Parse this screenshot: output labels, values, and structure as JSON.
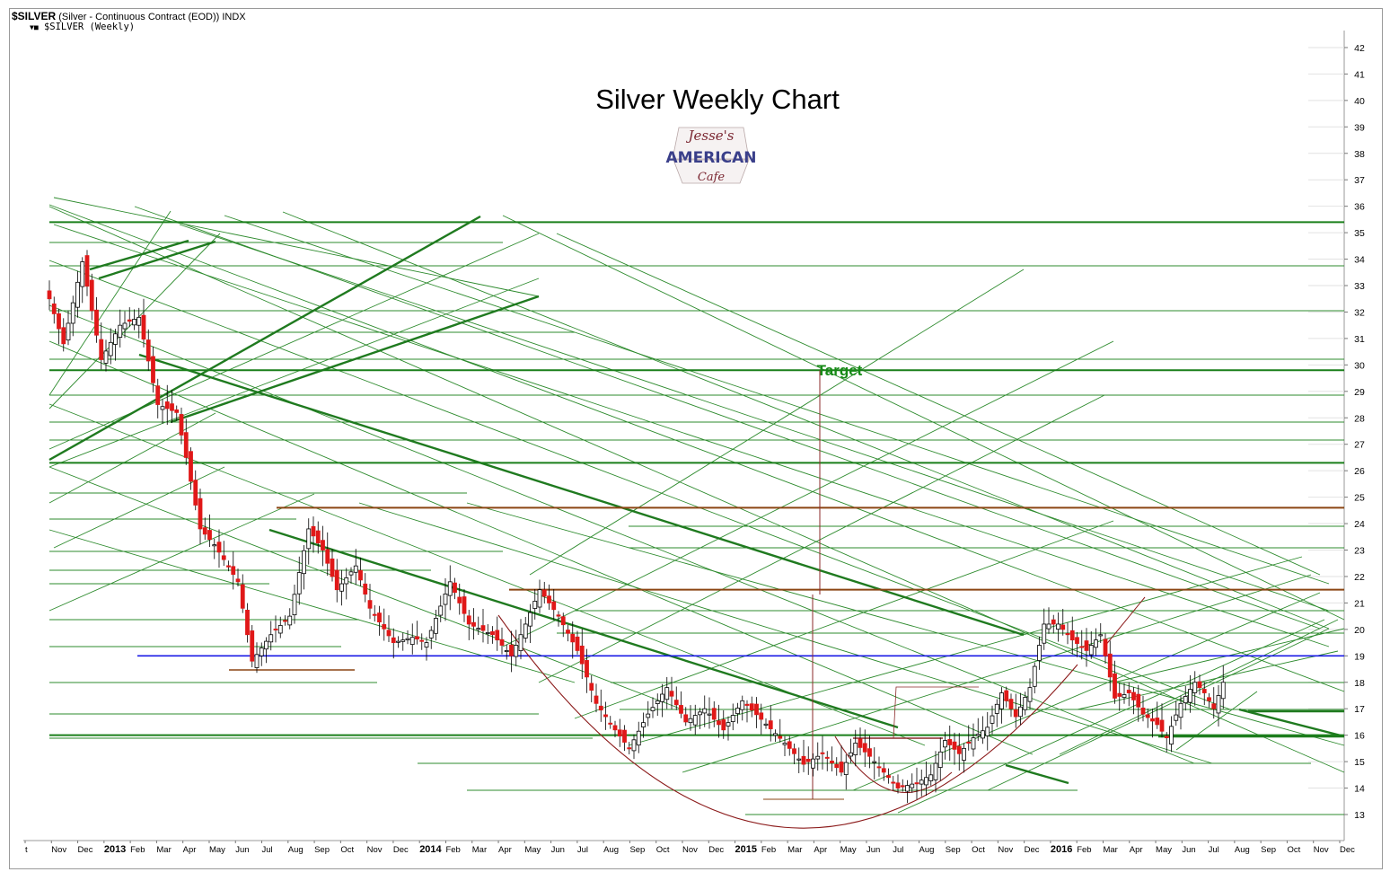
{
  "header": {
    "symbol": "$SILVER",
    "description": "(Silver - Continuous Contract (EOD))",
    "exchange": "INDX",
    "legend_marker": "▼■",
    "legend_label": "$SILVER (Weekly)"
  },
  "chart_data": {
    "type": "candlestick",
    "title": "Silver Weekly Chart",
    "logo_text": {
      "top": "Jesse's",
      "middle": "AMERICAN",
      "bottom": "Cafe"
    },
    "annotation": "Target",
    "annotation_value": 29.8,
    "y_ticks": [
      13,
      14,
      15,
      16,
      17,
      18,
      19,
      20,
      21,
      22,
      23,
      24,
      25,
      26,
      27,
      28,
      29,
      30,
      31,
      32,
      33,
      34,
      35,
      36,
      37,
      38,
      39,
      40,
      41,
      42
    ],
    "ylim": [
      12.3,
      43.0
    ],
    "x_ticks": [
      {
        "label": "t",
        "bold": false
      },
      {
        "label": "Nov",
        "bold": false
      },
      {
        "label": "Dec",
        "bold": false
      },
      {
        "label": "2013",
        "bold": true
      },
      {
        "label": "Feb",
        "bold": false
      },
      {
        "label": "Mar",
        "bold": false
      },
      {
        "label": "Apr",
        "bold": false
      },
      {
        "label": "May",
        "bold": false
      },
      {
        "label": "Jun",
        "bold": false
      },
      {
        "label": "Jul",
        "bold": false
      },
      {
        "label": "Aug",
        "bold": false
      },
      {
        "label": "Sep",
        "bold": false
      },
      {
        "label": "Oct",
        "bold": false
      },
      {
        "label": "Nov",
        "bold": false
      },
      {
        "label": "Dec",
        "bold": false
      },
      {
        "label": "2014",
        "bold": true
      },
      {
        "label": "Feb",
        "bold": false
      },
      {
        "label": "Mar",
        "bold": false
      },
      {
        "label": "Apr",
        "bold": false
      },
      {
        "label": "May",
        "bold": false
      },
      {
        "label": "Jun",
        "bold": false
      },
      {
        "label": "Jul",
        "bold": false
      },
      {
        "label": "Aug",
        "bold": false
      },
      {
        "label": "Sep",
        "bold": false
      },
      {
        "label": "Oct",
        "bold": false
      },
      {
        "label": "Nov",
        "bold": false
      },
      {
        "label": "Dec",
        "bold": false
      },
      {
        "label": "2015",
        "bold": true
      },
      {
        "label": "Feb",
        "bold": false
      },
      {
        "label": "Mar",
        "bold": false
      },
      {
        "label": "Apr",
        "bold": false
      },
      {
        "label": "May",
        "bold": false
      },
      {
        "label": "Jun",
        "bold": false
      },
      {
        "label": "Jul",
        "bold": false
      },
      {
        "label": "Aug",
        "bold": false
      },
      {
        "label": "Sep",
        "bold": false
      },
      {
        "label": "Oct",
        "bold": false
      },
      {
        "label": "Nov",
        "bold": false
      },
      {
        "label": "Dec",
        "bold": false
      },
      {
        "label": "2016",
        "bold": true
      },
      {
        "label": "Feb",
        "bold": false
      },
      {
        "label": "Mar",
        "bold": false
      },
      {
        "label": "Apr",
        "bold": false
      },
      {
        "label": "May",
        "bold": false
      },
      {
        "label": "Jun",
        "bold": false
      },
      {
        "label": "Jul",
        "bold": false
      },
      {
        "label": "Aug",
        "bold": false
      },
      {
        "label": "Sep",
        "bold": false
      },
      {
        "label": "Oct",
        "bold": false
      },
      {
        "label": "Nov",
        "bold": false
      },
      {
        "label": "Dec",
        "bold": false
      }
    ],
    "weekly_close_anchors": [
      {
        "week": 0,
        "close": 32.5
      },
      {
        "week": 3,
        "close": 30.8
      },
      {
        "week": 7,
        "close": 33.9
      },
      {
        "week": 11,
        "close": 30.2
      },
      {
        "week": 15,
        "close": 31.5
      },
      {
        "week": 19,
        "close": 31.8
      },
      {
        "week": 23,
        "close": 28.5
      },
      {
        "week": 27,
        "close": 28.2
      },
      {
        "week": 29,
        "close": 26.5
      },
      {
        "week": 32,
        "close": 23.8
      },
      {
        "week": 35,
        "close": 23.2
      },
      {
        "week": 40,
        "close": 21.8
      },
      {
        "week": 43,
        "close": 18.8
      },
      {
        "week": 47,
        "close": 19.8
      },
      {
        "week": 51,
        "close": 20.5
      },
      {
        "week": 55,
        "close": 23.8
      },
      {
        "week": 58,
        "close": 23.0
      },
      {
        "week": 61,
        "close": 21.5
      },
      {
        "week": 65,
        "close": 22.4
      },
      {
        "week": 68,
        "close": 20.8
      },
      {
        "week": 73,
        "close": 19.5
      },
      {
        "week": 77,
        "close": 19.7
      },
      {
        "week": 80,
        "close": 19.5
      },
      {
        "week": 85,
        "close": 21.8
      },
      {
        "week": 89,
        "close": 20.2
      },
      {
        "week": 94,
        "close": 19.8
      },
      {
        "week": 98,
        "close": 19.0
      },
      {
        "week": 101,
        "close": 20.2
      },
      {
        "week": 104,
        "close": 21.5
      },
      {
        "week": 108,
        "close": 20.5
      },
      {
        "week": 112,
        "close": 19.2
      },
      {
        "week": 116,
        "close": 17.2
      },
      {
        "week": 120,
        "close": 16.2
      },
      {
        "week": 123,
        "close": 15.5
      },
      {
        "week": 127,
        "close": 16.8
      },
      {
        "week": 131,
        "close": 17.8
      },
      {
        "week": 135,
        "close": 16.5
      },
      {
        "week": 139,
        "close": 17.0
      },
      {
        "week": 143,
        "close": 16.2
      },
      {
        "week": 147,
        "close": 17.3
      },
      {
        "week": 151,
        "close": 16.6
      },
      {
        "week": 156,
        "close": 15.7
      },
      {
        "week": 160,
        "close": 14.9
      },
      {
        "week": 164,
        "close": 15.3
      },
      {
        "week": 168,
        "close": 14.6
      },
      {
        "week": 171,
        "close": 15.7
      },
      {
        "week": 174,
        "close": 15.2
      },
      {
        "week": 177,
        "close": 14.6
      },
      {
        "week": 180,
        "close": 14.0
      },
      {
        "week": 184,
        "close": 14.2
      },
      {
        "week": 187,
        "close": 14.5
      },
      {
        "week": 190,
        "close": 15.8
      },
      {
        "week": 193,
        "close": 15.3
      },
      {
        "week": 196,
        "close": 15.9
      },
      {
        "week": 199,
        "close": 16.3
      },
      {
        "week": 202,
        "close": 17.6
      },
      {
        "week": 205,
        "close": 16.7
      },
      {
        "week": 208,
        "close": 17.8
      },
      {
        "week": 211,
        "close": 20.2
      },
      {
        "week": 214,
        "close": 20.2
      },
      {
        "week": 217,
        "close": 19.6
      },
      {
        "week": 220,
        "close": 19.2
      },
      {
        "week": 223,
        "close": 19.8
      },
      {
        "week": 226,
        "close": 17.4
      },
      {
        "week": 229,
        "close": 17.6
      },
      {
        "week": 232,
        "close": 16.8
      },
      {
        "week": 235,
        "close": 16.4
      },
      {
        "week": 237,
        "close": 15.9
      },
      {
        "week": 240,
        "close": 17.2
      },
      {
        "week": 243,
        "close": 18.0
      },
      {
        "week": 245,
        "close": 17.6
      },
      {
        "week": 247,
        "close": 17.0
      },
      {
        "week": 249,
        "close": 18.0
      }
    ],
    "horizontal_levels": [
      {
        "value": 35.4,
        "color": "#1a7f1a",
        "role": "resistance"
      },
      {
        "value": 29.8,
        "color": "#1a7f1a",
        "role": "target"
      },
      {
        "value": 26.3,
        "color": "#1a7f1a",
        "role": "level"
      },
      {
        "value": 24.6,
        "color": "#8b4513",
        "role": "level"
      },
      {
        "value": 21.5,
        "color": "#8b4513",
        "role": "neckline"
      },
      {
        "value": 19.0,
        "color": "#1a1ae6",
        "role": "support"
      },
      {
        "value": 16.0,
        "color": "#1a7f1a",
        "role": "support"
      }
    ],
    "grid": true,
    "legend": "top-left"
  }
}
